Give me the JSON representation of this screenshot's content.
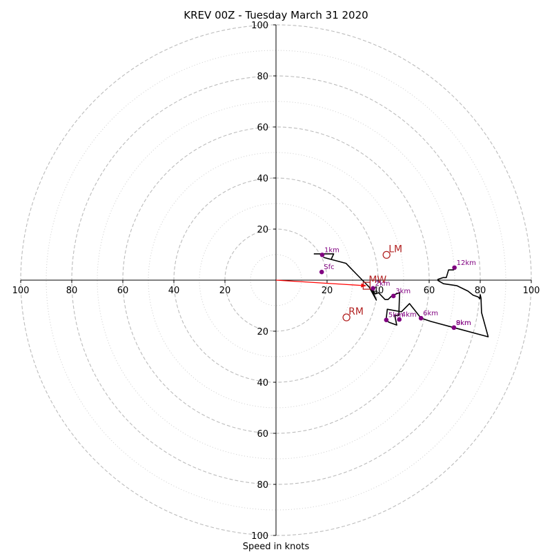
{
  "chart_data": {
    "type": "hodograph",
    "title": "KREV 00Z - Tuesday March 31 2020",
    "xlabel": "Speed in knots",
    "range": [
      -100,
      100
    ],
    "rings": {
      "major": [
        20,
        40,
        60,
        80,
        100
      ],
      "minor": [
        10,
        30,
        50,
        70,
        90
      ]
    },
    "ticks": {
      "x": [
        {
          "v": -100,
          "label": "100"
        },
        {
          "v": -80,
          "label": "80"
        },
        {
          "v": -60,
          "label": "60"
        },
        {
          "v": -40,
          "label": "40"
        },
        {
          "v": -20,
          "label": "20"
        },
        {
          "v": 20,
          "label": "20"
        },
        {
          "v": 40,
          "label": "40"
        },
        {
          "v": 60,
          "label": "60"
        },
        {
          "v": 80,
          "label": "80"
        },
        {
          "v": 100,
          "label": "100"
        }
      ],
      "y": [
        {
          "v": 100,
          "label": "100"
        },
        {
          "v": 80,
          "label": "80"
        },
        {
          "v": 60,
          "label": "60"
        },
        {
          "v": 40,
          "label": "40"
        },
        {
          "v": 20,
          "label": "20"
        },
        {
          "v": -20,
          "label": "20"
        },
        {
          "v": -40,
          "label": "40"
        },
        {
          "v": -60,
          "label": "60"
        },
        {
          "v": -80,
          "label": "80"
        },
        {
          "v": -100,
          "label": "100"
        }
      ]
    },
    "trace": [
      [
        14.8,
        10.3
      ],
      [
        22.6,
        10.3
      ],
      [
        21.6,
        8.1
      ],
      [
        18.7,
        8.9
      ],
      [
        24.7,
        7.3
      ],
      [
        27.4,
        6.6
      ],
      [
        31.2,
        2.7
      ],
      [
        36.5,
        -2.7
      ],
      [
        39.3,
        -7.8
      ],
      [
        37.5,
        -3.5
      ],
      [
        38.9,
        -5.4
      ],
      [
        40.1,
        -4.9
      ],
      [
        42.7,
        -7.6
      ],
      [
        43.9,
        -7.6
      ],
      [
        45.5,
        -6.0
      ],
      [
        48.4,
        -4.9
      ],
      [
        48.1,
        -13.8
      ],
      [
        46.5,
        -13.8
      ],
      [
        47.3,
        -17.6
      ],
      [
        44.3,
        -16.5
      ],
      [
        43.1,
        -15.7
      ],
      [
        43.6,
        -11.4
      ],
      [
        49.1,
        -12.4
      ],
      [
        52.3,
        -9.2
      ],
      [
        56.8,
        -14.9
      ],
      [
        60.7,
        -16.2
      ],
      [
        69.7,
        -18.6
      ],
      [
        83.1,
        -22.2
      ],
      [
        80.5,
        -12.7
      ],
      [
        80.3,
        -7.0
      ],
      [
        80.0,
        -5.7
      ],
      [
        79.8,
        -7.3
      ],
      [
        79.2,
        -6.6
      ],
      [
        77.2,
        -5.9
      ],
      [
        75.2,
        -4.3
      ],
      [
        70.9,
        -2.2
      ],
      [
        65.6,
        -1.4
      ],
      [
        63.4,
        -0.1
      ],
      [
        63.4,
        0.3
      ],
      [
        65.5,
        1.0
      ],
      [
        66.7,
        1.0
      ],
      [
        67.6,
        4.0
      ],
      [
        69.5,
        4.0
      ],
      [
        69.7,
        5.0
      ]
    ],
    "height_markers": [
      {
        "label": "Sfc",
        "u": 17.9,
        "v": 3.2
      },
      {
        "label": "1km",
        "u": 18.1,
        "v": 9.9
      },
      {
        "label": "2km",
        "u": 38.0,
        "v": -3.2
      },
      {
        "label": "3km",
        "u": 46.0,
        "v": -6.2
      },
      {
        "label": "4km",
        "u": 48.3,
        "v": -15.4
      },
      {
        "label": "5km",
        "u": 43.2,
        "v": -15.6
      },
      {
        "label": "6km",
        "u": 56.8,
        "v": -14.9
      },
      {
        "label": "8km",
        "u": 69.7,
        "v": -18.6
      },
      {
        "label": "9km",
        "u": 69.7,
        "v": -18.6
      },
      {
        "label": "12km",
        "u": 69.9,
        "v": 4.9
      }
    ],
    "storm_motions": [
      {
        "label": "LM",
        "u": 43.3,
        "v": 9.9,
        "symbol": "circle"
      },
      {
        "label": "RM",
        "u": 27.6,
        "v": -14.6,
        "symbol": "circle"
      },
      {
        "label": "MW",
        "u": 35.5,
        "v": -2.2,
        "symbol": "square"
      }
    ],
    "mean_wind_vector": {
      "from": [
        0,
        0
      ],
      "to": [
        35.5,
        -2.2
      ]
    },
    "colors": {
      "trace": "#000000",
      "markers": "#800080",
      "storm_motion": "#b22222",
      "vector": "#ff0000",
      "rings": "#bbbbbb"
    }
  }
}
